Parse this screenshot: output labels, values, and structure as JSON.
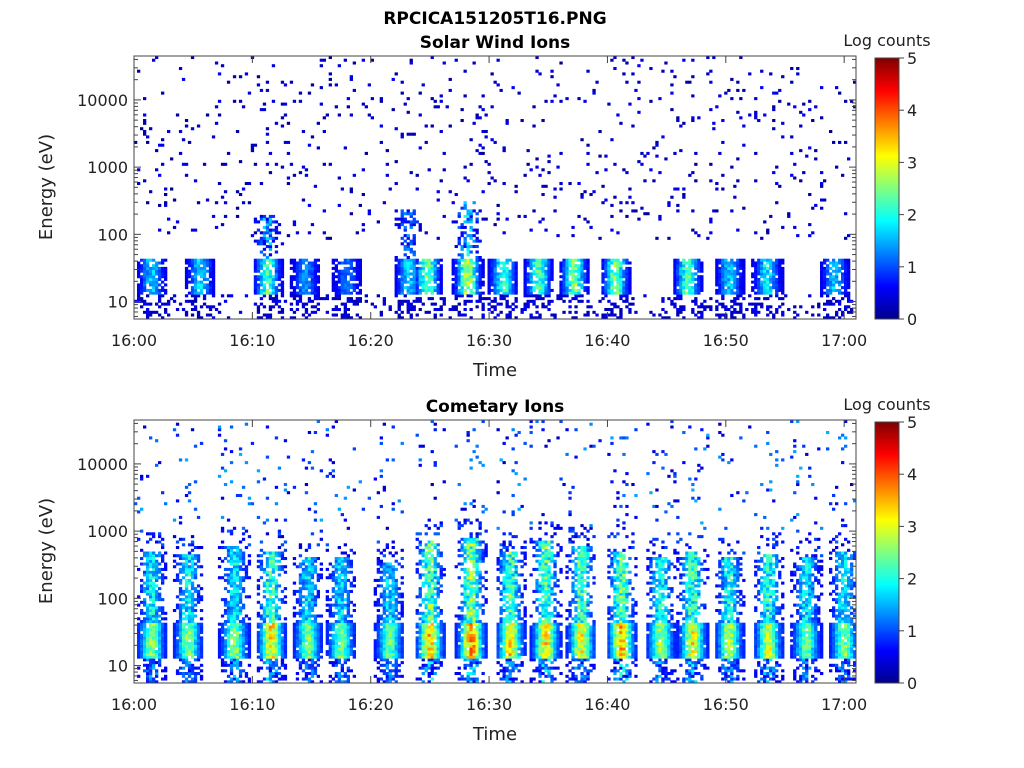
{
  "figure_title": "RPCICA151205T16.PNG",
  "chart_data": [
    {
      "type": "heatmap",
      "title": "Solar Wind Ions",
      "xlabel": "Time",
      "ylabel": "Energy (eV)",
      "y_scale": "log",
      "ylim": [
        5.5,
        45000
      ],
      "xlim": [
        "16:00",
        "17:01"
      ],
      "x_ticks": [
        "16:00",
        "16:10",
        "16:20",
        "16:30",
        "16:40",
        "16:50",
        "17:00"
      ],
      "y_ticks": [
        "10",
        "100",
        "1000",
        "10000"
      ],
      "colorbar": {
        "label": "Log counts",
        "min": 0,
        "max": 5,
        "ticks": [
          "0",
          "1",
          "2",
          "3",
          "4",
          "5"
        ],
        "colormap": "jet"
      },
      "grid": false,
      "bursts": [
        {
          "t": 1.5,
          "level": 1.6,
          "top": 0.0
        },
        {
          "t": 5.6,
          "level": 1.6,
          "top": 0.0
        },
        {
          "t": 11.3,
          "level": 2.3,
          "top": 200
        },
        {
          "t": 14.5,
          "level": 1.2,
          "top": 0.0
        },
        {
          "t": 18.0,
          "level": 1.0,
          "top": 0.0
        },
        {
          "t": 23.2,
          "level": 1.6,
          "top": 250
        },
        {
          "t": 24.8,
          "level": 2.6,
          "top": 0.0
        },
        {
          "t": 28.2,
          "level": 2.9,
          "top": 300
        },
        {
          "t": 31.2,
          "level": 2.3,
          "top": 0.0
        },
        {
          "t": 34.2,
          "level": 2.4,
          "top": 0.0
        },
        {
          "t": 37.2,
          "level": 2.6,
          "top": 0.0
        },
        {
          "t": 40.7,
          "level": 2.6,
          "top": 0.0
        },
        {
          "t": 46.8,
          "level": 2.4,
          "top": 0.0
        },
        {
          "t": 50.3,
          "level": 1.6,
          "top": 0.0
        },
        {
          "t": 53.5,
          "level": 1.8,
          "top": 0.0
        },
        {
          "t": 59.2,
          "level": 1.5,
          "top": 0.0
        }
      ]
    },
    {
      "type": "heatmap",
      "title": "Cometary Ions",
      "xlabel": "Time",
      "ylabel": "Energy (eV)",
      "y_scale": "log",
      "ylim": [
        5.5,
        45000
      ],
      "xlim": [
        "16:00",
        "17:01"
      ],
      "x_ticks": [
        "16:00",
        "16:10",
        "16:20",
        "16:30",
        "16:40",
        "16:50",
        "17:00"
      ],
      "y_ticks": [
        "10",
        "100",
        "1000",
        "10000"
      ],
      "colorbar": {
        "label": "Log counts",
        "min": 0,
        "max": 5,
        "ticks": [
          "0",
          "1",
          "2",
          "3",
          "4",
          "5"
        ],
        "colormap": "jet"
      },
      "grid": false,
      "bursts": [
        {
          "t": 1.5,
          "level": 2.4,
          "top": 500
        },
        {
          "t": 4.6,
          "level": 2.4,
          "top": 450
        },
        {
          "t": 8.5,
          "level": 2.4,
          "top": 600
        },
        {
          "t": 11.6,
          "level": 3.2,
          "top": 500
        },
        {
          "t": 14.7,
          "level": 2.3,
          "top": 400
        },
        {
          "t": 17.5,
          "level": 2.2,
          "top": 400
        },
        {
          "t": 21.6,
          "level": 2.2,
          "top": 350
        },
        {
          "t": 25.0,
          "level": 3.4,
          "top": 700
        },
        {
          "t": 28.5,
          "level": 3.7,
          "top": 800
        },
        {
          "t": 31.8,
          "level": 3.2,
          "top": 500
        },
        {
          "t": 34.8,
          "level": 3.3,
          "top": 700
        },
        {
          "t": 37.8,
          "level": 3.1,
          "top": 600
        },
        {
          "t": 41.2,
          "level": 3.5,
          "top": 500
        },
        {
          "t": 44.5,
          "level": 2.6,
          "top": 400
        },
        {
          "t": 47.2,
          "level": 3.1,
          "top": 500
        },
        {
          "t": 50.3,
          "level": 2.6,
          "top": 400
        },
        {
          "t": 53.6,
          "level": 2.9,
          "top": 450
        },
        {
          "t": 56.8,
          "level": 2.3,
          "top": 400
        },
        {
          "t": 60.0,
          "level": 2.4,
          "top": 500
        }
      ]
    }
  ]
}
